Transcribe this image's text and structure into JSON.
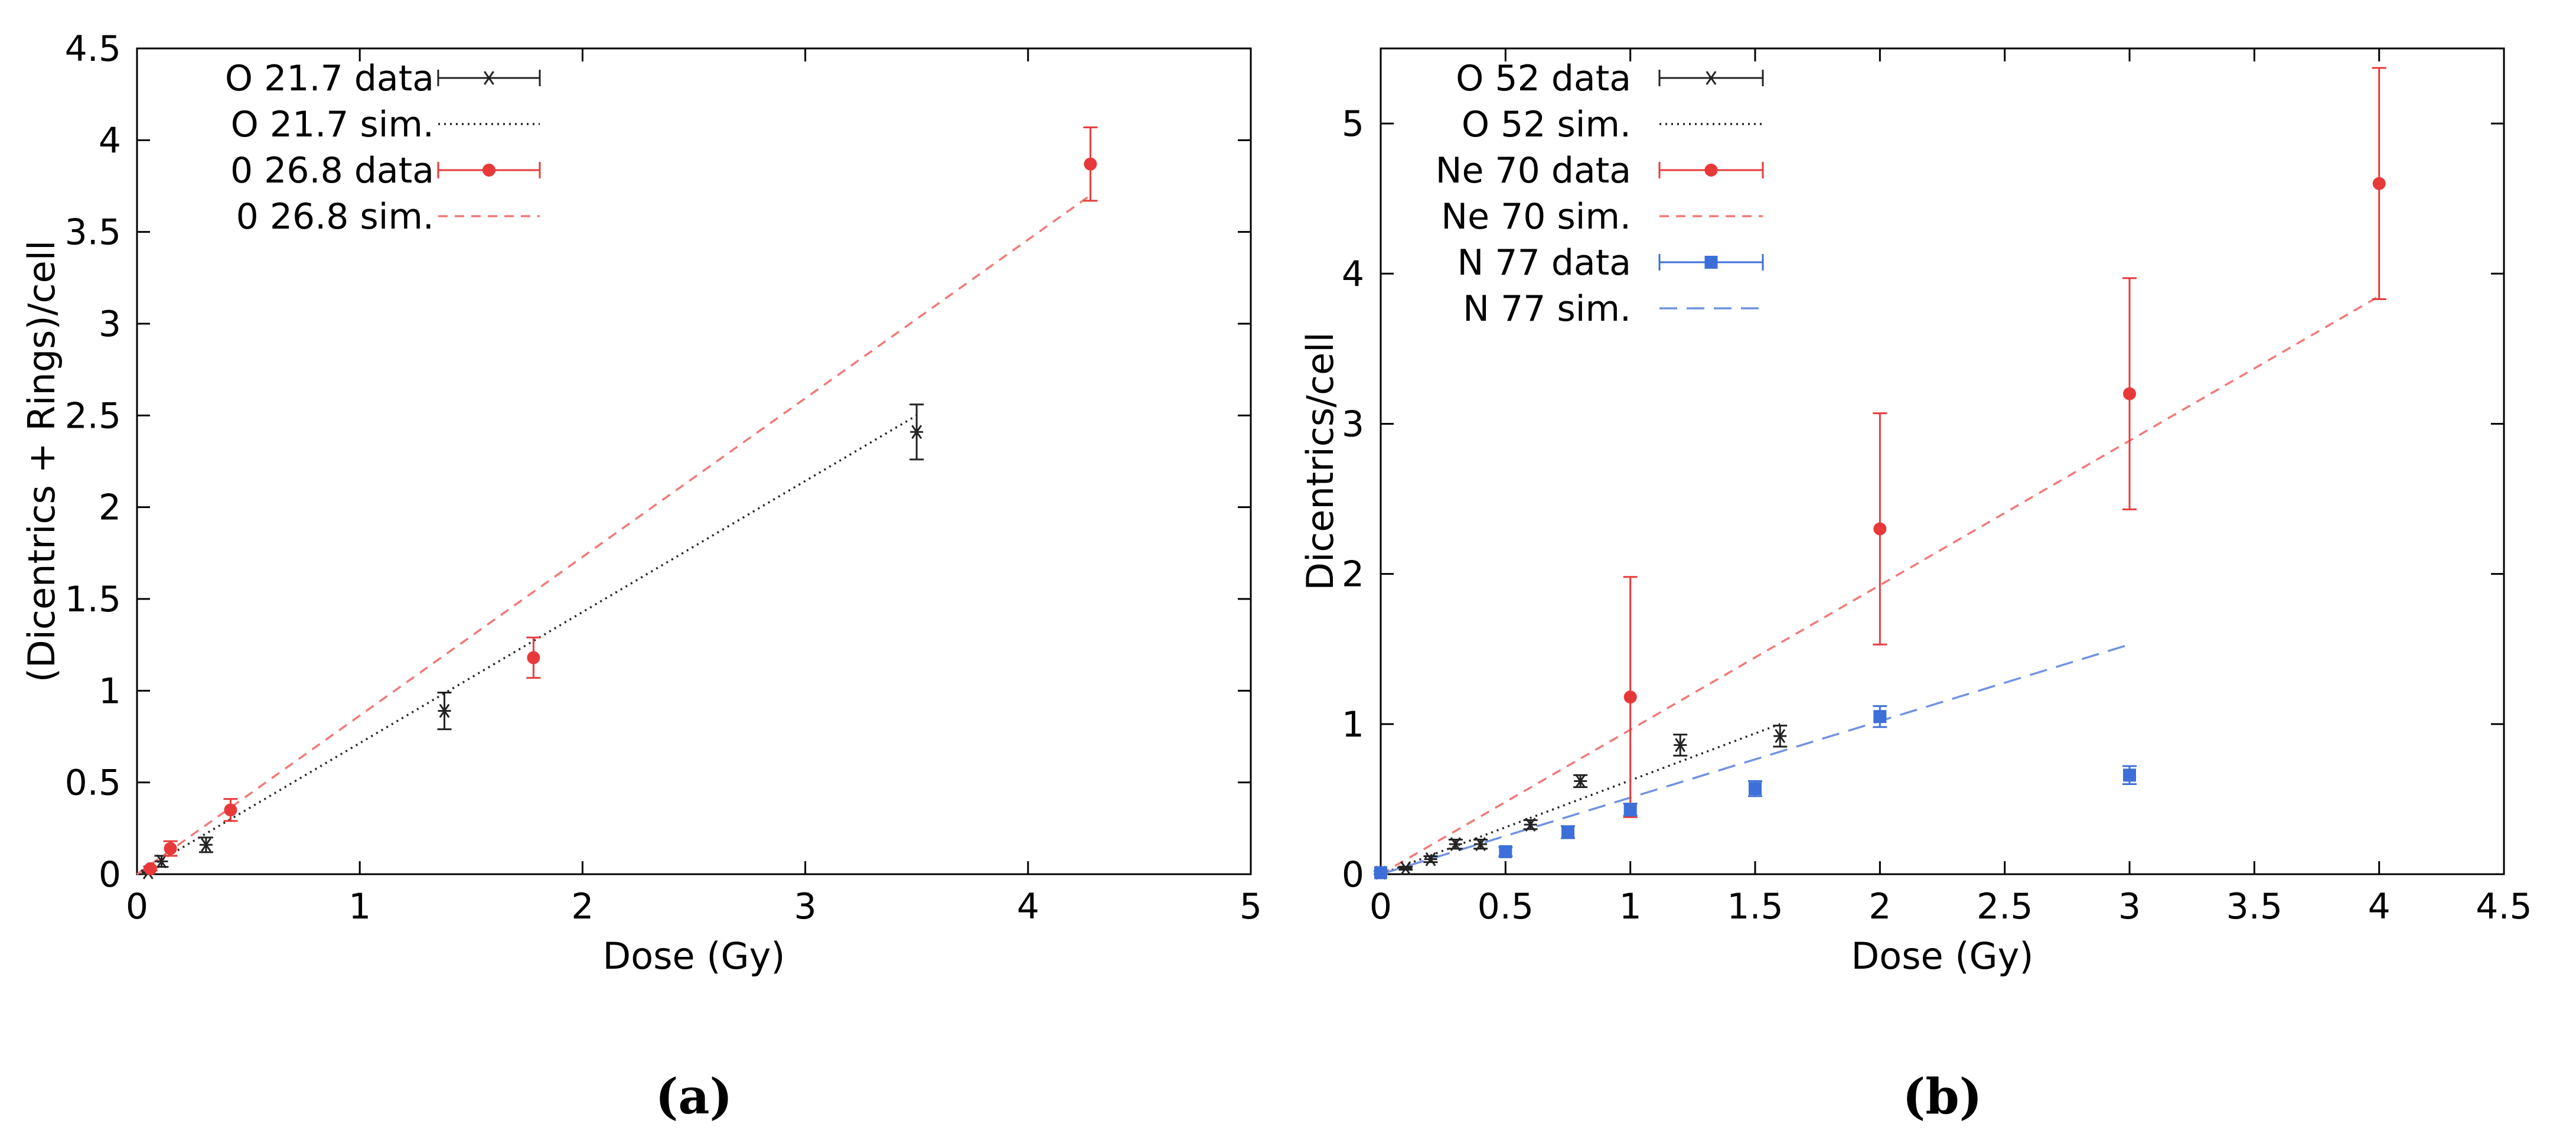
{
  "chart_data": [
    {
      "type": "scatter",
      "panel_label": "(a)",
      "xlabel": "Dose (Gy)",
      "ylabel": "(Dicentrics + Rings)/cell",
      "xlim": [
        0,
        5
      ],
      "ylim": [
        0,
        4.5
      ],
      "xticks": [
        "0",
        "1",
        "2",
        "3",
        "4",
        "5"
      ],
      "yticks": [
        "0",
        "0.5",
        "1",
        "1.5",
        "2",
        "2.5",
        "3",
        "3.5",
        "4",
        "4.5"
      ],
      "legend_position": "top-left",
      "series": [
        {
          "name": "O 21.7 data",
          "kind": "data",
          "marker": "star",
          "color": "#222222",
          "points": [
            {
              "x": 0.05,
              "y": 0.01,
              "err": 0.01
            },
            {
              "x": 0.11,
              "y": 0.07,
              "err": 0.03
            },
            {
              "x": 0.31,
              "y": 0.16,
              "err": 0.04
            },
            {
              "x": 1.38,
              "y": 0.89,
              "err": 0.1
            },
            {
              "x": 3.5,
              "y": 2.41,
              "err": 0.15
            }
          ]
        },
        {
          "name": "O 21.7 sim.",
          "kind": "sim",
          "dash": "dotted",
          "color": "#222222",
          "line": [
            [
              0,
              0
            ],
            [
              3.5,
              2.5
            ]
          ]
        },
        {
          "name": "0 26.8 data",
          "kind": "data",
          "marker": "dot",
          "color": "#e8393a",
          "points": [
            {
              "x": 0.06,
              "y": 0.03,
              "err": 0.01
            },
            {
              "x": 0.15,
              "y": 0.14,
              "err": 0.04
            },
            {
              "x": 0.42,
              "y": 0.35,
              "err": 0.06
            },
            {
              "x": 1.78,
              "y": 1.18,
              "err": 0.11
            },
            {
              "x": 4.28,
              "y": 3.87,
              "err": 0.2
            }
          ]
        },
        {
          "name": "0 26.8 sim.",
          "kind": "sim",
          "dash": "dashed",
          "color": "#f07a78",
          "line": [
            [
              0,
              0
            ],
            [
              4.28,
              3.7
            ]
          ]
        }
      ]
    },
    {
      "type": "scatter",
      "panel_label": "(b)",
      "xlabel": "Dose (Gy)",
      "ylabel": "Dicentrics/cell",
      "xlim": [
        0,
        4.5
      ],
      "ylim": [
        0,
        5.5
      ],
      "xticks": [
        "0",
        "0.5",
        "1",
        "1.5",
        "2",
        "2.5",
        "3",
        "3.5",
        "4",
        "4.5"
      ],
      "yticks": [
        "0",
        "1",
        "2",
        "3",
        "4",
        "5"
      ],
      "legend_position": "top-left",
      "series": [
        {
          "name": "O 52 data",
          "kind": "data",
          "marker": "star",
          "color": "#222222",
          "points": [
            {
              "x": 0,
              "y": 0.01,
              "err": 0.01
            },
            {
              "x": 0.1,
              "y": 0.04,
              "err": 0.01
            },
            {
              "x": 0.2,
              "y": 0.1,
              "err": 0.02
            },
            {
              "x": 0.3,
              "y": 0.2,
              "err": 0.03
            },
            {
              "x": 0.4,
              "y": 0.2,
              "err": 0.03
            },
            {
              "x": 0.6,
              "y": 0.33,
              "err": 0.03
            },
            {
              "x": 0.8,
              "y": 0.62,
              "err": 0.04
            },
            {
              "x": 1.2,
              "y": 0.86,
              "err": 0.07
            },
            {
              "x": 1.6,
              "y": 0.92,
              "err": 0.07
            }
          ]
        },
        {
          "name": "O 52 sim.",
          "kind": "sim",
          "dash": "dotted",
          "color": "#222222",
          "line": [
            [
              0,
              0
            ],
            [
              1.6,
              1.0
            ]
          ]
        },
        {
          "name": "Ne 70 data",
          "kind": "data",
          "marker": "dot",
          "color": "#e8393a",
          "points": [
            {
              "x": 1,
              "y": 1.18,
              "err": 0.8
            },
            {
              "x": 2,
              "y": 2.3,
              "err": 0.77
            },
            {
              "x": 3,
              "y": 3.2,
              "err": 0.77
            },
            {
              "x": 4,
              "y": 4.6,
              "err": 0.77
            }
          ]
        },
        {
          "name": "Ne 70 sim.",
          "kind": "sim",
          "dash": "dashed",
          "color": "#f07a78",
          "line": [
            [
              0,
              0
            ],
            [
              4,
              3.85
            ]
          ]
        },
        {
          "name": "N 77 data",
          "kind": "data",
          "marker": "square",
          "color": "#3d6fd8",
          "points": [
            {
              "x": 0,
              "y": 0.01,
              "err": 0.01
            },
            {
              "x": 0.5,
              "y": 0.15,
              "err": 0.03
            },
            {
              "x": 0.75,
              "y": 0.28,
              "err": 0.04
            },
            {
              "x": 1,
              "y": 0.43,
              "err": 0.04
            },
            {
              "x": 1.5,
              "y": 0.57,
              "err": 0.05
            },
            {
              "x": 2,
              "y": 1.05,
              "err": 0.07
            },
            {
              "x": 3,
              "y": 0.66,
              "err": 0.06
            }
          ]
        },
        {
          "name": "N 77 sim.",
          "kind": "sim",
          "dash": "longdash",
          "color": "#6f93e0",
          "line": [
            [
              0,
              0
            ],
            [
              3,
              1.53
            ]
          ]
        }
      ]
    }
  ]
}
